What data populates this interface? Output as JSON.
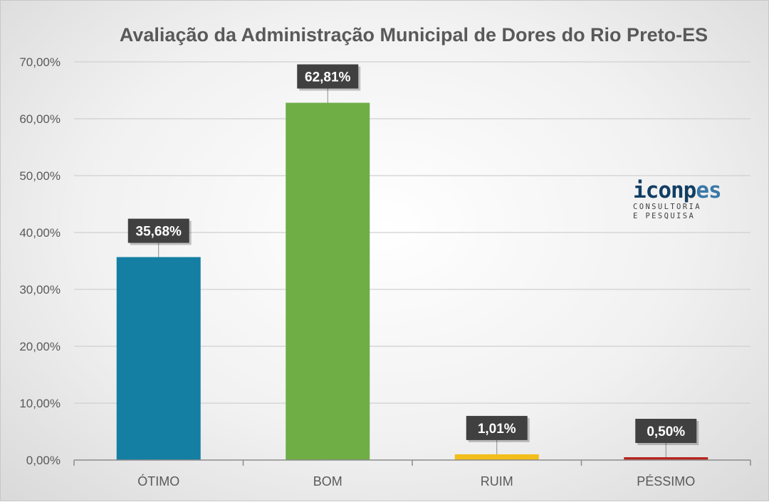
{
  "chart_data": {
    "type": "bar",
    "title": "Avaliação da Administração Municipal de Dores do Rio Preto-ES",
    "categories": [
      "ÓTIMO",
      "BOM",
      "RUIM",
      "PÉSSIMO"
    ],
    "values": [
      35.68,
      62.81,
      1.01,
      0.5
    ],
    "data_labels": [
      "35,68%",
      "62,81%",
      "1,01%",
      "0,50%"
    ],
    "colors": [
      "#147fa3",
      "#6fae45",
      "#f2be1a",
      "#b8251d"
    ],
    "ylim": [
      0,
      70
    ],
    "yticks": [
      {
        "value": 0,
        "label": "0,00%"
      },
      {
        "value": 10,
        "label": "10,00%"
      },
      {
        "value": 20,
        "label": "20,00%"
      },
      {
        "value": 30,
        "label": "30,00%"
      },
      {
        "value": 40,
        "label": "40,00%"
      },
      {
        "value": 50,
        "label": "50,00%"
      },
      {
        "value": 60,
        "label": "60,00%"
      },
      {
        "value": 70,
        "label": "70,00%"
      }
    ],
    "xlabel": "",
    "ylabel": "",
    "grid": true,
    "legend": "none"
  },
  "logo": {
    "word_part1": "iconp",
    "word_part2": "es",
    "line1": "CONSULTORIA",
    "line2": "E PESQUISA"
  }
}
